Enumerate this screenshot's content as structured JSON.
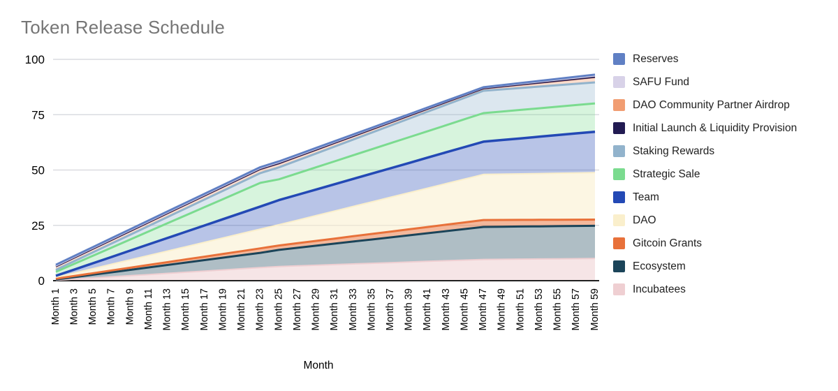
{
  "title": "Token Release Schedule",
  "chart_data": {
    "type": "area",
    "title": "Token Release Schedule",
    "xlabel": "Month",
    "ylabel": "",
    "ylim": [
      0,
      100
    ],
    "yticks": [
      0,
      25,
      50,
      75,
      100
    ],
    "grid": true,
    "legend_position": "right",
    "x_tick_months": [
      1,
      3,
      5,
      7,
      9,
      11,
      13,
      15,
      17,
      19,
      21,
      23,
      25,
      27,
      29,
      31,
      33,
      35,
      37,
      39,
      41,
      43,
      45,
      47,
      49,
      51,
      53,
      55,
      57,
      59
    ],
    "x_tick_labels": [
      "Month 1",
      "Month 3",
      "Month 5",
      "Month 7",
      "Month 9",
      "Month 11",
      "Month 13",
      "Month 15",
      "Month 17",
      "Month 19",
      "Month 21",
      "Month 23",
      "Month 25",
      "Month 27",
      "Month 29",
      "Month 31",
      "Month 33",
      "Month 35",
      "Month 37",
      "Month 39",
      "Month 41",
      "Month 43",
      "Month 45",
      "Month 47",
      "Month 49",
      "Month 51",
      "Month 53",
      "Month 55",
      "Month 57",
      "Month 59"
    ],
    "values_meaning": "Each series value is the cumulative unlocked percent of total token supply (top edge of its stacked band); keypoints are [month, value] vertices of the piecewise-linear release lines.",
    "series": [
      {
        "name": "Reserves",
        "color": "#6080C4",
        "fill_opacity": 0.45,
        "line_width": 3,
        "keypoints": [
          [
            1,
            7.2
          ],
          [
            23,
            51.3
          ],
          [
            25,
            53.9
          ],
          [
            47,
            87.4
          ],
          [
            59,
            93.1
          ]
        ]
      },
      {
        "name": "SAFU Fund",
        "color": "#D8D2E8",
        "fill_opacity": 0.55,
        "line_width": 2,
        "keypoints": [
          [
            1,
            6.7
          ],
          [
            23,
            50.8
          ],
          [
            25,
            53.4
          ],
          [
            47,
            87.15
          ],
          [
            59,
            92.5
          ]
        ]
      },
      {
        "name": "Initial Launch & Liquidity Provision",
        "color": "#221B52",
        "fill_opacity": 0.3,
        "line_width": 3,
        "keypoints": [
          [
            1,
            6.5
          ],
          [
            23,
            50.55
          ],
          [
            25,
            53.1
          ],
          [
            47,
            86.95
          ],
          [
            59,
            92.1
          ]
        ]
      },
      {
        "name": "DAO Community Partner Airdrop",
        "color": "#F19D72",
        "fill_opacity": 0.35,
        "line_width": 1.5,
        "keypoints": [
          [
            1,
            6.2
          ],
          [
            23,
            50.2
          ],
          [
            25,
            52.75
          ],
          [
            47,
            86.6
          ],
          [
            59,
            91.7
          ]
        ]
      },
      {
        "name": "Staking Rewards",
        "color": "#92B3CC",
        "fill_opacity": 0.32,
        "line_width": 3,
        "keypoints": [
          [
            1,
            4.9
          ],
          [
            23,
            48.6
          ],
          [
            25,
            51.2
          ],
          [
            47,
            85.8
          ],
          [
            59,
            89.6
          ]
        ]
      },
      {
        "name": "Strategic Sale",
        "color": "#7BDB8F",
        "fill_opacity": 0.3,
        "line_width": 3,
        "keypoints": [
          [
            1,
            4.0
          ],
          [
            23,
            44.2
          ],
          [
            25,
            45.8
          ],
          [
            47,
            75.7
          ],
          [
            59,
            80.1
          ]
        ]
      },
      {
        "name": "Team",
        "color": "#2349B5",
        "fill_opacity": 0.32,
        "line_width": 3.5,
        "keypoints": [
          [
            1,
            2.2
          ],
          [
            23,
            33.5
          ],
          [
            25,
            36.4
          ],
          [
            47,
            62.8
          ],
          [
            59,
            67.3
          ]
        ]
      },
      {
        "name": "DAO",
        "color": "#FAEFCC",
        "fill_opacity": 0.55,
        "line_width": 2,
        "keypoints": [
          [
            1,
            1.5
          ],
          [
            23,
            23.3
          ],
          [
            25,
            25.3
          ],
          [
            47,
            48.0
          ],
          [
            59,
            48.8
          ]
        ]
      },
      {
        "name": "Gitcoin Grants",
        "color": "#E8713A",
        "fill_opacity": 0.5,
        "line_width": 3,
        "keypoints": [
          [
            1,
            0.9
          ],
          [
            23,
            14.6
          ],
          [
            25,
            15.9
          ],
          [
            47,
            27.4
          ],
          [
            59,
            27.6
          ]
        ]
      },
      {
        "name": "Ecosystem",
        "color": "#1B4459",
        "fill_opacity": 0.35,
        "line_width": 3,
        "keypoints": [
          [
            1,
            0.5
          ],
          [
            23,
            12.6
          ],
          [
            25,
            13.9
          ],
          [
            47,
            24.3
          ],
          [
            59,
            24.8
          ]
        ]
      },
      {
        "name": "Incubatees",
        "color": "#EFCFD2",
        "fill_opacity": 0.55,
        "line_width": 2,
        "keypoints": [
          [
            1,
            0.2
          ],
          [
            23,
            5.9
          ],
          [
            25,
            6.4
          ],
          [
            47,
            9.6
          ],
          [
            59,
            10.0
          ]
        ]
      }
    ]
  },
  "legend": {
    "items": [
      {
        "label": "Reserves",
        "color": "#6080C4"
      },
      {
        "label": "SAFU Fund",
        "color": "#D8D2E8"
      },
      {
        "label": "DAO Community Partner Airdrop",
        "color": "#F19D72"
      },
      {
        "label": "Initial Launch & Liquidity Provision",
        "color": "#221B52"
      },
      {
        "label": "Staking Rewards",
        "color": "#92B3CC"
      },
      {
        "label": "Strategic Sale",
        "color": "#7BDB8F"
      },
      {
        "label": "Team",
        "color": "#2349B5"
      },
      {
        "label": "DAO",
        "color": "#FAEFCC"
      },
      {
        "label": "Gitcoin Grants",
        "color": "#E8713A"
      },
      {
        "label": "Ecosystem",
        "color": "#1B4459"
      },
      {
        "label": "Incubatees",
        "color": "#EFCFD2"
      }
    ]
  },
  "style": {
    "title_color": "#757575",
    "grid_color": "#DADCE0",
    "axis_line_color": "#212121",
    "tick_label_color": "#000000",
    "background": "#FFFFFF"
  }
}
